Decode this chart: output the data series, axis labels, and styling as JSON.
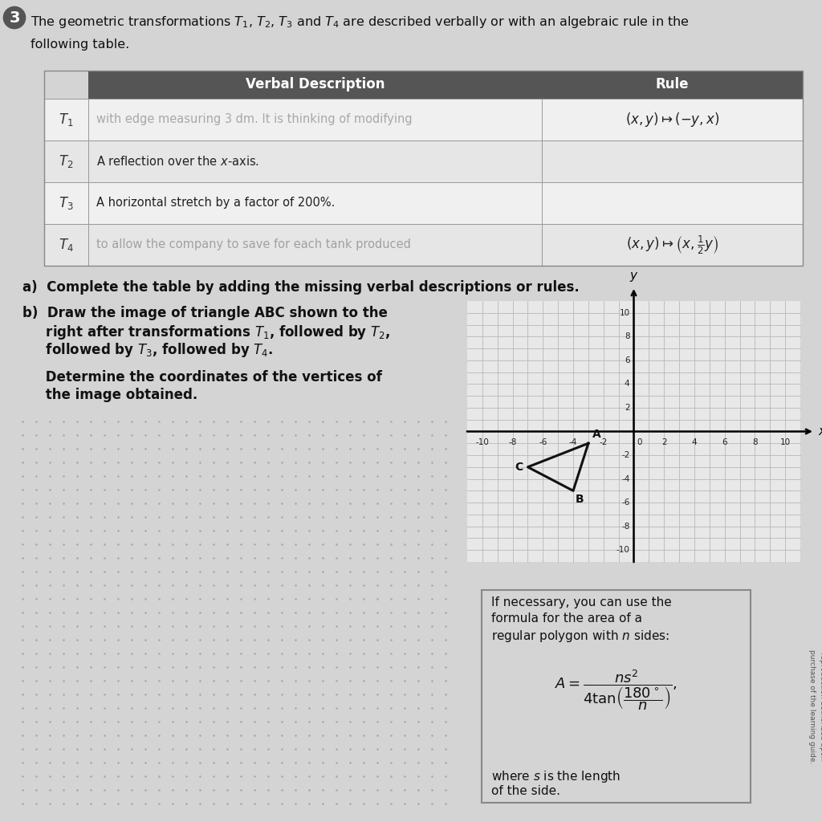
{
  "bg_color": "#d4d4d4",
  "title_line1": "The geometric transformations $T_1$, $T_2$, $T_3$ and $T_4$ are described verbally or with an algebraic rule in the",
  "title_line2": "following table.",
  "question_number": "3",
  "table_header_bg": "#555555",
  "table_header_color": "#ffffff",
  "rows": [
    {
      "label": "$T_1$",
      "verbal": "with edge measuring 3 dm. It is thinking of modifying",
      "verbal_faded": true,
      "rule": "$(x, y) \\mapsto (-y, x)$",
      "rule_faded": false
    },
    {
      "label": "$T_2$",
      "verbal": "A reflection over the $x$-axis.",
      "verbal_faded": false,
      "rule": "",
      "rule_faded": false
    },
    {
      "label": "$T_3$",
      "verbal": "A horizontal stretch by a factor of 200%.",
      "verbal_faded": false,
      "rule": "",
      "rule_faded": false
    },
    {
      "label": "$T_4$",
      "verbal": "to allow the company to save for each tank produced",
      "verbal_faded": true,
      "rule": "$(x, y) \\mapsto \\left(x, \\frac{1}{2}y\\right)$",
      "rule_faded": false
    }
  ],
  "part_a": "a)  Complete the table by adding the missing verbal descriptions or rules.",
  "part_b_lines": [
    "b)  Draw the image of triangle ABC shown to the",
    "     right after transformations $T_1$, followed by $T_2$,",
    "     followed by $T_3$, followed by $T_4$."
  ],
  "part_b2_lines": [
    "     Determine the coordinates of the vertices of",
    "     the image obtained."
  ],
  "triangle_A": [
    -3,
    -1
  ],
  "triangle_B": [
    -4,
    -5
  ],
  "triangle_C": [
    -7,
    -3
  ],
  "formula_line1": "If necessary, you can use the",
  "formula_line2": "formula for the area of a",
  "formula_line3": "regular polygon with $n$ sides:",
  "formula_expr": "$A = \\dfrac{ns^2}{4\\tan\\!\\left(\\dfrac{180^\\circ}{n}\\right)},$",
  "formula_line4": "where $s$ is the length",
  "formula_line5": "of the side.",
  "copyright": "reproduction authorized upon\npurchase of the learning guide."
}
